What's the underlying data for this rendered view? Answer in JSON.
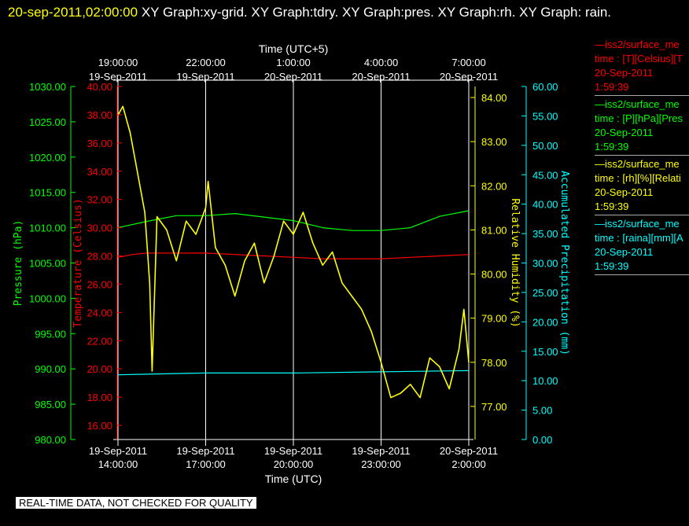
{
  "header": {
    "timestamp": "20-sep-2011,02:00:00",
    "graphs": "XY Graph:xy-grid.  XY Graph:tdry.  XY Graph:pres.  XY Graph:rh.  XY Graph: rain."
  },
  "disclaimer": "REAL-TIME DATA, NOT CHECKED FOR QUALITY",
  "colors": {
    "temperature": "#ff0000",
    "pressure": "#00ff00",
    "humidity": "#ffff00",
    "precip": "#00ffff",
    "grid": "#ffffff"
  },
  "legend": [
    {
      "name": "—iss2/surface_me",
      "line2": "time : [T][Celsius][T",
      "line3": "20-Sep-2011",
      "line4": "1:59:39",
      "color": "#ff0000"
    },
    {
      "name": "—iss2/surface_me",
      "line2": "time : [P][hPa][Pres",
      "line3": "20-Sep-2011",
      "line4": "1:59:39",
      "color": "#00ff00"
    },
    {
      "name": "—iss2/surface_me",
      "line2": "time : [rh][%][Relati",
      "line3": "20-Sep-2011",
      "line4": "1:59:39",
      "color": "#ffff00"
    },
    {
      "name": "—iss2/surface_me",
      "line2": "time : [raina][mm][A",
      "line3": "20-Sep-2011",
      "line4": "1:59:39",
      "color": "#00ffff"
    }
  ],
  "chart_data": {
    "type": "line",
    "top_axis_title": "Time (UTC+5)",
    "top_ticks": [
      {
        "time": "19:00:00",
        "date": "19-Sep-2011"
      },
      {
        "time": "22:00:00",
        "date": "19-Sep-2011"
      },
      {
        "time": "1:00:00",
        "date": "20-Sep-2011"
      },
      {
        "time": "4:00:00",
        "date": "20-Sep-2011"
      },
      {
        "time": "7:00:00",
        "date": "20-Sep-2011"
      }
    ],
    "xlabel": "Time (UTC)",
    "x_ticks": [
      {
        "date": "19-Sep-2011",
        "time": "14:00:00"
      },
      {
        "date": "19-Sep-2011",
        "time": "17:00:00"
      },
      {
        "date": "19-Sep-2011",
        "time": "20:00:00"
      },
      {
        "date": "19-Sep-2011",
        "time": "23:00:00"
      },
      {
        "date": "20-Sep-2011",
        "time": "2:00:00"
      }
    ],
    "xlim": [
      "2011-09-19 14:00:00",
      "2011-09-20 02:00:00"
    ],
    "grid": "vertical",
    "axes": {
      "pressure": {
        "label": "Pressure (hPa)",
        "range": [
          980,
          1030
        ],
        "ticks": [
          "980.00",
          "985.00",
          "990.00",
          "995.00",
          "1000.00",
          "1005.00",
          "1010.00",
          "1015.00",
          "1020.00",
          "1025.00",
          "1030.00"
        ]
      },
      "temperature": {
        "label": "Temperature (Celsius)",
        "range": [
          15,
          40
        ],
        "ticks": [
          "16.00",
          "18.00",
          "20.00",
          "22.00",
          "24.00",
          "26.00",
          "28.00",
          "30.00",
          "32.00",
          "34.00",
          "36.00",
          "38.00",
          "40.00"
        ]
      },
      "humidity": {
        "label": "Relative Humidity (%)",
        "range": [
          76.25,
          84.25
        ],
        "ticks": [
          "77.00",
          "78.00",
          "79.00",
          "80.00",
          "81.00",
          "82.00",
          "83.00",
          "84.00"
        ]
      },
      "precip": {
        "label": "Accumulated Precipitation (mm)",
        "range": [
          0,
          60
        ],
        "ticks": [
          "0.00",
          "5.00",
          "10.00",
          "15.00",
          "20.00",
          "25.00",
          "30.00",
          "35.00",
          "40.00",
          "45.00",
          "50.00",
          "55.00",
          "60.00"
        ]
      }
    },
    "series": [
      {
        "key": "temperature",
        "axis": "temperature",
        "x": [
          "2011-09-19 14:00",
          "2011-09-19 14:30",
          "2011-09-19 15:00",
          "2011-09-19 16:00",
          "2011-09-19 17:00",
          "2011-09-19 18:00",
          "2011-09-19 19:00",
          "2011-09-19 20:00",
          "2011-09-19 21:00",
          "2011-09-19 22:00",
          "2011-09-19 23:00",
          "2011-09-20 00:00",
          "2011-09-20 01:00",
          "2011-09-20 02:00"
        ],
        "y": [
          27.9,
          28.1,
          28.2,
          28.2,
          28.2,
          28.1,
          28.0,
          27.9,
          27.8,
          27.8,
          27.8,
          27.9,
          28.0,
          28.1
        ]
      },
      {
        "key": "pressure",
        "axis": "pressure",
        "x": [
          "2011-09-19 14:00",
          "2011-09-19 15:00",
          "2011-09-19 16:00",
          "2011-09-19 17:00",
          "2011-09-19 18:00",
          "2011-09-19 19:00",
          "2011-09-19 20:00",
          "2011-09-19 21:00",
          "2011-09-19 22:00",
          "2011-09-19 23:00",
          "2011-09-20 00:00",
          "2011-09-20 01:00",
          "2011-09-20 02:00"
        ],
        "y": [
          1010.0,
          1010.9,
          1011.7,
          1011.7,
          1012.0,
          1011.5,
          1011.0,
          1010.0,
          1009.6,
          1009.6,
          1010.0,
          1011.6,
          1012.4
        ]
      },
      {
        "key": "humidity",
        "axis": "humidity",
        "x": [
          "2011-09-19 14:00",
          "2011-09-19 14:10",
          "2011-09-19 14:25",
          "2011-09-19 14:40",
          "2011-09-19 14:55",
          "2011-09-19 15:05",
          "2011-09-19 15:10",
          "2011-09-19 15:20",
          "2011-09-19 15:40",
          "2011-09-19 16:00",
          "2011-09-19 16:20",
          "2011-09-19 16:40",
          "2011-09-19 17:00",
          "2011-09-19 17:05",
          "2011-09-19 17:20",
          "2011-09-19 17:40",
          "2011-09-19 18:00",
          "2011-09-19 18:20",
          "2011-09-19 18:40",
          "2011-09-19 19:00",
          "2011-09-19 19:20",
          "2011-09-19 19:40",
          "2011-09-19 20:00",
          "2011-09-19 20:20",
          "2011-09-19 20:40",
          "2011-09-19 21:00",
          "2011-09-19 21:20",
          "2011-09-19 21:40",
          "2011-09-19 22:00",
          "2011-09-19 22:20",
          "2011-09-19 22:40",
          "2011-09-19 23:00",
          "2011-09-19 23:20",
          "2011-09-19 23:40",
          "2011-09-20 00:00",
          "2011-09-20 00:20",
          "2011-09-20 00:40",
          "2011-09-20 01:00",
          "2011-09-20 01:20",
          "2011-09-20 01:40",
          "2011-09-20 01:50",
          "2011-09-20 02:00"
        ],
        "y": [
          83.6,
          83.8,
          83.2,
          82.3,
          81.4,
          79.8,
          77.8,
          81.3,
          81.0,
          80.3,
          81.2,
          80.9,
          81.5,
          82.1,
          80.6,
          80.2,
          79.5,
          80.3,
          80.7,
          79.8,
          80.4,
          81.2,
          80.9,
          81.4,
          80.7,
          80.2,
          80.5,
          79.8,
          79.5,
          79.2,
          78.7,
          78.0,
          77.2,
          77.3,
          77.5,
          77.2,
          78.1,
          77.9,
          77.4,
          78.3,
          79.2,
          78.0
        ]
      },
      {
        "key": "precip",
        "axis": "precip",
        "x": [
          "2011-09-19 14:00",
          "2011-09-19 15:00",
          "2011-09-19 17:00",
          "2011-09-19 20:00",
          "2011-09-19 23:00",
          "2011-09-20 02:00"
        ],
        "y": [
          11.0,
          11.1,
          11.3,
          11.3,
          11.5,
          11.7
        ]
      }
    ]
  }
}
